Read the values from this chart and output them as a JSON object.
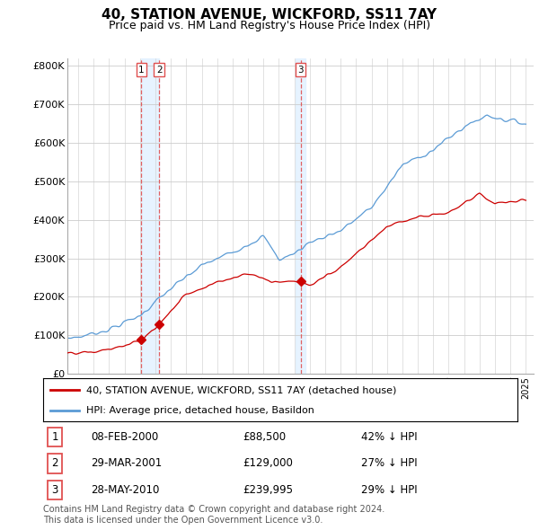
{
  "title": "40, STATION AVENUE, WICKFORD, SS11 7AY",
  "subtitle": "Price paid vs. HM Land Registry's House Price Index (HPI)",
  "title_fontsize": 11,
  "subtitle_fontsize": 9,
  "yticks": [
    0,
    100000,
    200000,
    300000,
    400000,
    500000,
    600000,
    700000,
    800000
  ],
  "ytick_labels": [
    "£0",
    "£100K",
    "£200K",
    "£300K",
    "£400K",
    "£500K",
    "£600K",
    "£700K",
    "£800K"
  ],
  "ylim": [
    0,
    820000
  ],
  "hpi_color": "#5b9bd5",
  "hpi_shade_color": "#ddeeff",
  "price_color": "#cc0000",
  "vline_color": "#e05050",
  "transactions": [
    {
      "label": "1",
      "year": 2000.1,
      "price": 88500,
      "date": "08-FEB-2000",
      "hpi_pct": "42% ↓ HPI"
    },
    {
      "label": "2",
      "year": 2001.25,
      "price": 129000,
      "date": "29-MAR-2001",
      "hpi_pct": "27% ↓ HPI"
    },
    {
      "label": "3",
      "year": 2010.4,
      "price": 239995,
      "date": "28-MAY-2010",
      "hpi_pct": "29% ↓ HPI"
    }
  ],
  "legend_price_label": "40, STATION AVENUE, WICKFORD, SS11 7AY (detached house)",
  "legend_hpi_label": "HPI: Average price, detached house, Basildon",
  "footer1": "Contains HM Land Registry data © Crown copyright and database right 2024.",
  "footer2": "This data is licensed under the Open Government Licence v3.0."
}
